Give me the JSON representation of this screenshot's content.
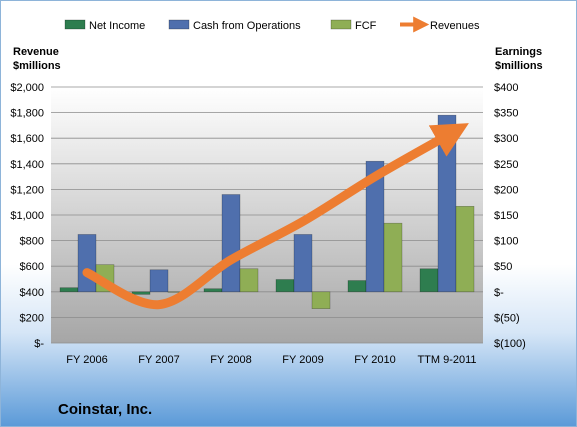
{
  "chart_data": {
    "type": "bar",
    "categories": [
      "FY 2006",
      "FY 2007",
      "FY 2008",
      "FY 2009",
      "FY 2010",
      "TTM 9-2011"
    ],
    "series": [
      {
        "name": "Net Income",
        "axis": "right",
        "kind": "bar",
        "color": "#2e7d4f",
        "values": [
          8,
          -5,
          6,
          24,
          22,
          45
        ]
      },
      {
        "name": "Cash from Operations",
        "axis": "right",
        "kind": "bar",
        "color": "#4f6fad",
        "values": [
          112,
          43,
          190,
          112,
          255,
          345
        ]
      },
      {
        "name": "FCF",
        "axis": "right",
        "kind": "bar",
        "color": "#8fae55",
        "values": [
          53,
          0,
          45,
          -33,
          134,
          167
        ]
      },
      {
        "name": "Revenues",
        "axis": "left",
        "kind": "line",
        "color": "#ed7d31",
        "values": [
          550,
          300,
          650,
          950,
          1300,
          1620
        ]
      }
    ],
    "left_axis": {
      "title_line1": "Revenue",
      "title_line2": "$millions",
      "min": 0,
      "max": 2000,
      "step": 200,
      "tick_labels": [
        "$-",
        "$200",
        "$400",
        "$600",
        "$800",
        "$1,000",
        "$1,200",
        "$1,400",
        "$1,600",
        "$1,800",
        "$2,000"
      ]
    },
    "right_axis": {
      "title_line1": "Earnings",
      "title_line2": "$millions",
      "min": -100,
      "max": 400,
      "step": 50,
      "tick_labels": [
        "$(100)",
        "$(50)",
        "$-",
        "$50",
        "$100",
        "$150",
        "$200",
        "$250",
        "$300",
        "$350",
        "$400"
      ]
    },
    "legend_position": "top",
    "grid": true,
    "plot_background": "gray gradient"
  },
  "company": "Coinstar, Inc."
}
